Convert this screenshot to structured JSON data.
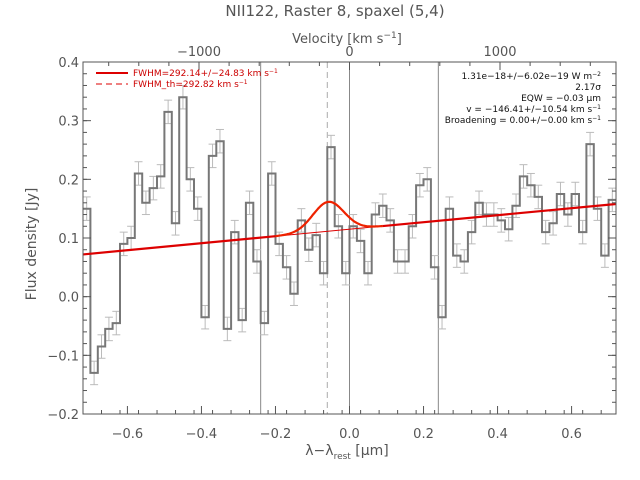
{
  "chart_data": {
    "type": "line",
    "title": "NII122, Raster 8, spaxel (5,4)",
    "xlabel": "λ−λ",
    "xlabel_sub": "rest",
    "xlabel_unit": " [μm]",
    "ylabel": "Flux density [Jy]",
    "top_axis": {
      "label": "Velocity [km s",
      "label_sup": "−1",
      "label_close": "]",
      "ticks": [
        {
          "v": -1000,
          "label": "−1000"
        },
        {
          "v": 0,
          "label": "0"
        },
        {
          "v": 1000,
          "label": "1000"
        }
      ]
    },
    "xlim": [
      -0.72,
      0.72
    ],
    "ylim": [
      -0.2,
      0.4
    ],
    "xticks": [
      {
        "v": -0.6,
        "label": "−0.6"
      },
      {
        "v": -0.4,
        "label": "−0.4"
      },
      {
        "v": -0.2,
        "label": "−0.2"
      },
      {
        "v": 0.0,
        "label": "0.0"
      },
      {
        "v": 0.2,
        "label": "0.2"
      },
      {
        "v": 0.4,
        "label": "0.4"
      },
      {
        "v": 0.6,
        "label": "0.6"
      }
    ],
    "yticks": [
      {
        "v": -0.2,
        "label": "−0.2"
      },
      {
        "v": -0.1,
        "label": "−0.1"
      },
      {
        "v": 0.0,
        "label": "0.0"
      },
      {
        "v": 0.1,
        "label": "0.1"
      },
      {
        "v": 0.2,
        "label": "0.2"
      },
      {
        "v": 0.3,
        "label": "0.3"
      },
      {
        "v": 0.4,
        "label": "0.4"
      }
    ],
    "vlines_solid": [
      -0.24,
      0.0,
      0.24
    ],
    "vline_dashed": -0.06,
    "legend": [
      {
        "label": "FWHM=292.14+/−24.83 km s",
        "sup": "−1",
        "style": "solid"
      },
      {
        "label": "FWHM_th=292.82 km s",
        "sup": "−1",
        "style": "dashed"
      }
    ],
    "annotations": [
      {
        "main": "1.31e−18+/−6.02e−19 W m",
        "sup": "−2"
      },
      {
        "main": "2.17σ",
        "sup": ""
      },
      {
        "main": "EQW = −0.03 μm",
        "sup": ""
      },
      {
        "main": "v = −146.41+/−10.54 km s",
        "sup": "−1"
      },
      {
        "main": "Broadening = 0.00+/−0.00 km s",
        "sup": "−1"
      }
    ],
    "spectrum": {
      "step": 0.02,
      "x": [
        -0.72,
        -0.7,
        -0.68,
        -0.66,
        -0.64,
        -0.62,
        -0.6,
        -0.58,
        -0.56,
        -0.54,
        -0.52,
        -0.5,
        -0.48,
        -0.46,
        -0.44,
        -0.42,
        -0.4,
        -0.38,
        -0.36,
        -0.34,
        -0.32,
        -0.3,
        -0.28,
        -0.26,
        -0.24,
        -0.22,
        -0.2,
        -0.18,
        -0.16,
        -0.14,
        -0.12,
        -0.1,
        -0.08,
        -0.06,
        -0.04,
        -0.02,
        0.0,
        0.02,
        0.04,
        0.06,
        0.08,
        0.1,
        0.12,
        0.14,
        0.16,
        0.18,
        0.2,
        0.22,
        0.24,
        0.26,
        0.28,
        0.3,
        0.32,
        0.34,
        0.36,
        0.38,
        0.4,
        0.42,
        0.44,
        0.46,
        0.48,
        0.5,
        0.52,
        0.54,
        0.56,
        0.58,
        0.6,
        0.62,
        0.64,
        0.66,
        0.68,
        0.7
      ],
      "y": [
        0.15,
        -0.13,
        -0.085,
        -0.055,
        -0.045,
        0.09,
        0.1,
        0.21,
        0.16,
        0.185,
        0.205,
        0.315,
        0.125,
        0.34,
        0.2,
        0.15,
        -0.035,
        0.24,
        0.265,
        -0.055,
        0.11,
        -0.04,
        0.16,
        0.06,
        -0.045,
        0.21,
        0.09,
        0.05,
        0.005,
        0.13,
        0.08,
        0.105,
        0.04,
        0.255,
        0.12,
        0.04,
        0.12,
        0.095,
        0.04,
        0.14,
        0.155,
        0.13,
        0.06,
        0.06,
        0.12,
        0.19,
        0.2,
        0.05,
        -0.035,
        0.15,
        0.07,
        0.06,
        0.11,
        0.16,
        0.14,
        0.14,
        0.13,
        0.115,
        0.155,
        0.205,
        0.19,
        0.17,
        0.11,
        0.125,
        0.175,
        0.14,
        0.175,
        0.11,
        0.26,
        0.15,
        0.07,
        0.165
      ],
      "err": 0.02
    },
    "fit": {
      "baseline": {
        "x": [
          -0.72,
          0.72
        ],
        "y": [
          0.072,
          0.158
        ]
      },
      "gaussian": {
        "center": -0.057,
        "amplitude": 0.05,
        "sigma": 0.042,
        "x_range": [
          -0.2,
          0.09
        ]
      }
    }
  }
}
